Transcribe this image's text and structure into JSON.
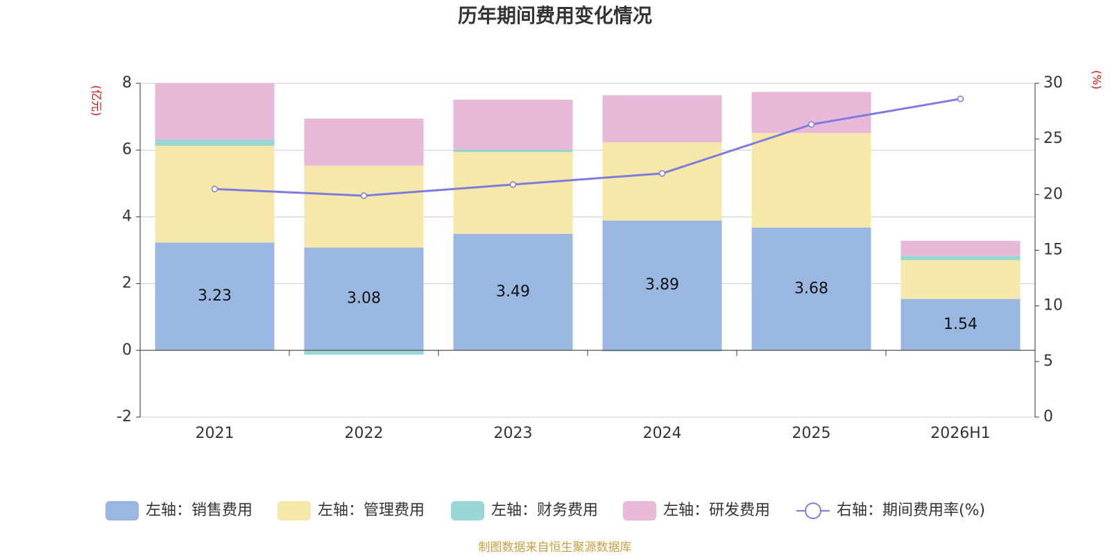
{
  "chart_data": {
    "type": "bar",
    "title": "历年期间费用变化情况",
    "y_label": "(亿元)",
    "y2_label": "(%)",
    "source": "制图数据来自恒生聚源数据库",
    "categories": [
      "2021",
      "2022",
      "2023",
      "2024",
      "2025",
      "2026H1"
    ],
    "stacked": true,
    "series": [
      {
        "name": "左轴：销售费用",
        "color": "#9ab7e1",
        "data_labels": true,
        "values": [
          3.23,
          3.08,
          3.49,
          3.89,
          3.68,
          1.54
        ]
      },
      {
        "name": "左轴：管理费用",
        "color": "#f6e8a8",
        "values": [
          2.9,
          2.45,
          2.45,
          2.34,
          2.83,
          1.16
        ]
      },
      {
        "name": "左轴：财务费用",
        "color": "#9ad6d3",
        "values": [
          0.19,
          -0.13,
          0.08,
          -0.03,
          0.0,
          0.13
        ]
      },
      {
        "name": "左轴：研发费用",
        "color": "#e8b8d8",
        "values": [
          1.68,
          1.41,
          1.49,
          1.41,
          1.23,
          0.45
        ]
      },
      {
        "name": "右轴：期间费用率(%)",
        "type": "line",
        "axis": "y2",
        "color": "#7b7be0",
        "values": [
          20.5,
          19.9,
          20.9,
          21.9,
          26.3,
          28.6
        ]
      }
    ],
    "ylim": [
      -2,
      8
    ],
    "yticks": [
      -2,
      0,
      2,
      4,
      6,
      8
    ],
    "y2lim": [
      0,
      30
    ],
    "y2ticks": [
      0,
      5,
      10,
      15,
      20,
      25,
      30
    ],
    "grid": true
  }
}
